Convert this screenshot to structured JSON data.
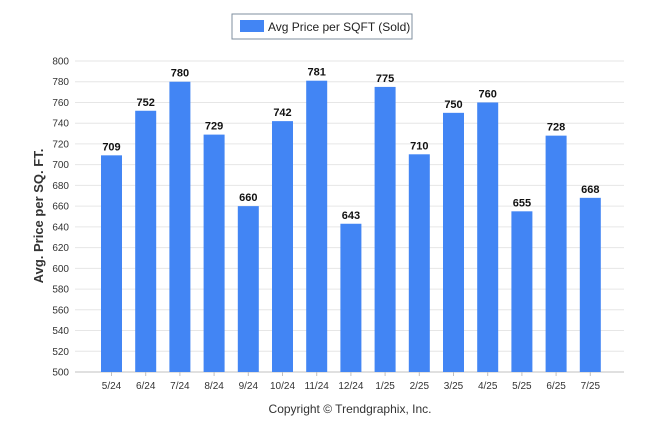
{
  "chart_data": {
    "type": "bar",
    "categories": [
      "5/24",
      "6/24",
      "7/24",
      "8/24",
      "9/24",
      "10/24",
      "11/24",
      "12/24",
      "1/25",
      "2/25",
      "3/25",
      "4/25",
      "5/25",
      "6/25",
      "7/25"
    ],
    "series": [
      {
        "name": "Avg Price per SQFT (Sold)",
        "values": [
          709,
          752,
          780,
          729,
          660,
          742,
          781,
          643,
          775,
          710,
          750,
          760,
          655,
          728,
          668
        ],
        "color": "#4285f4"
      }
    ],
    "ylabel": "Avg. Price per SQ. FT.",
    "xlabel": "",
    "ylim": [
      500,
      800
    ],
    "yticks": [
      500,
      520,
      540,
      560,
      580,
      600,
      620,
      640,
      660,
      680,
      700,
      720,
      740,
      760,
      780,
      800
    ],
    "grid": true,
    "legend_position": "top-center",
    "data_labels": true
  },
  "footer": {
    "copyright": "Copyright © Trendgraphix, Inc."
  }
}
